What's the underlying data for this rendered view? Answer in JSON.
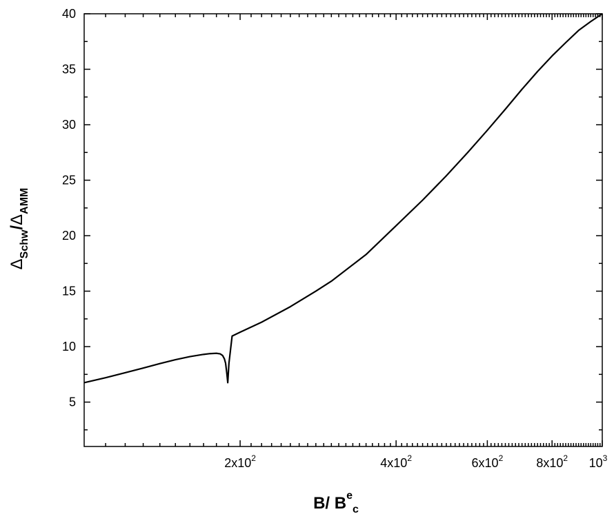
{
  "chart_data": {
    "type": "line",
    "title": "",
    "xlabel": {
      "main": "B/ B",
      "superscript": "e",
      "subscript": "c"
    },
    "ylabel": {
      "symbol1": "Δ",
      "subscript1": "Schw",
      "separator": "/",
      "symbol2": "Δ",
      "subscript2": "AMM"
    },
    "x_scale": "log",
    "xlim": [
      100,
      1000
    ],
    "ylim": [
      1,
      40
    ],
    "grid": false,
    "legend": false,
    "x_ticks": [
      {
        "value": 200,
        "label": "2x10",
        "exp": "2"
      },
      {
        "value": 400,
        "label": "4x10",
        "exp": "2"
      },
      {
        "value": 600,
        "label": "6x10",
        "exp": "2"
      },
      {
        "value": 800,
        "label": "8x10",
        "exp": "2"
      },
      {
        "value": 1000,
        "label": "10",
        "exp": "3"
      }
    ],
    "y_ticks": [
      5,
      10,
      15,
      20,
      25,
      30,
      35,
      40
    ],
    "series": [
      {
        "color": "#000000",
        "x": [
          100,
          110,
          120,
          130,
          140,
          150,
          160,
          170,
          175,
          180,
          183,
          185,
          186.5,
          187.5,
          188.5,
          189.3,
          190.3,
          193,
          200,
          220,
          250,
          280,
          300,
          350,
          400,
          450,
          500,
          550,
          600,
          650,
          700,
          750,
          800,
          850,
          900,
          950,
          1000
        ],
        "y": [
          6.75,
          7.2,
          7.65,
          8.07,
          8.47,
          8.82,
          9.1,
          9.3,
          9.37,
          9.4,
          9.35,
          9.2,
          8.9,
          8.5,
          7.6,
          6.75,
          8.5,
          10.95,
          11.3,
          12.2,
          13.6,
          15.0,
          15.9,
          18.3,
          20.9,
          23.2,
          25.4,
          27.5,
          29.5,
          31.4,
          33.2,
          34.8,
          36.2,
          37.4,
          38.5,
          39.3,
          40.0
        ]
      }
    ]
  }
}
